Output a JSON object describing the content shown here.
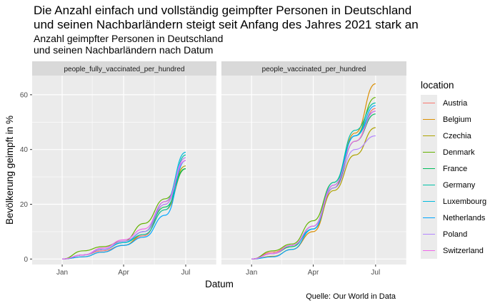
{
  "title_line1": "Die Anzahl einfach und vollständig geimpfter Personen in Deutschland",
  "title_line2": "und seinen Nachbarländern steigt seit Anfang des Jahres 2021 stark an",
  "subtitle_line1": "Anzahl geimpfter Personen in Deutschland",
  "subtitle_line2": "und seinen Nachbarländern nach Datum",
  "caption": "Quelle: Our World in Data",
  "legend_title": "location",
  "chart_data": {
    "type": "line",
    "xlabel": "Datum",
    "ylabel": "Bevölkerung geimpft in %",
    "x_ticks": [
      "Jan",
      "Apr",
      "Jul"
    ],
    "y_ticks": [
      0,
      20,
      40,
      60
    ],
    "ylim": [
      -2,
      67
    ],
    "xlim": [
      "2020-11-18",
      "2021-08-15"
    ],
    "grid": true,
    "legend_position": "right",
    "panels": [
      {
        "strip": "people_fully_vaccinated_per_hundred",
        "series": [
          {
            "name": "Austria",
            "color": "#F8766D",
            "x": [
              "2021-01-01",
              "2021-02-01",
              "2021-03-01",
              "2021-04-01",
              "2021-05-01",
              "2021-06-01",
              "2021-07-01"
            ],
            "y": [
              0,
              1.5,
              3,
              5,
              8.5,
              20,
              37
            ]
          },
          {
            "name": "Belgium",
            "color": "#DB8E00",
            "x": [
              "2021-01-01",
              "2021-02-01",
              "2021-03-01",
              "2021-04-01",
              "2021-05-01",
              "2021-06-01",
              "2021-07-01"
            ],
            "y": [
              0,
              0.8,
              2.5,
              5,
              9,
              18,
              33
            ]
          },
          {
            "name": "Czechia",
            "color": "#AEA200",
            "x": [
              "2021-01-01",
              "2021-02-01",
              "2021-03-01",
              "2021-04-01",
              "2021-05-01",
              "2021-06-01",
              "2021-07-01"
            ],
            "y": [
              0,
              1.5,
              3.5,
              6,
              10,
              21,
              34
            ]
          },
          {
            "name": "Denmark",
            "color": "#64B200",
            "x": [
              "2021-01-01",
              "2021-02-01",
              "2021-03-01",
              "2021-04-01",
              "2021-05-01",
              "2021-06-01",
              "2021-07-01"
            ],
            "y": [
              0,
              3,
              4.5,
              6.5,
              13,
              22,
              33
            ]
          },
          {
            "name": "France",
            "color": "#00BD5C",
            "x": [
              "2021-01-01",
              "2021-02-01",
              "2021-03-01",
              "2021-04-01",
              "2021-05-01",
              "2021-06-01",
              "2021-07-01"
            ],
            "y": [
              0,
              1.5,
              3.5,
              6,
              10,
              19,
              33
            ]
          },
          {
            "name": "Germany",
            "color": "#00C1A7",
            "x": [
              "2021-01-01",
              "2021-02-01",
              "2021-03-01",
              "2021-04-01",
              "2021-05-01",
              "2021-06-01",
              "2021-07-01"
            ],
            "y": [
              0,
              1.5,
              3.5,
              6,
              9,
              18,
              38
            ]
          },
          {
            "name": "Luxembourg",
            "color": "#00BADE",
            "x": [
              "2021-01-01",
              "2021-02-01",
              "2021-03-01",
              "2021-04-01",
              "2021-05-01",
              "2021-06-01",
              "2021-07-01"
            ],
            "y": [
              0,
              1.5,
              3.5,
              6,
              10,
              21,
              39
            ]
          },
          {
            "name": "Netherlands",
            "color": "#00A6FF",
            "x": [
              "2021-01-01",
              "2021-02-01",
              "2021-03-01",
              "2021-04-01",
              "2021-05-01",
              "2021-06-01",
              "2021-07-01"
            ],
            "y": [
              0,
              0.8,
              2.5,
              5,
              8,
              16,
              36
            ]
          },
          {
            "name": "Poland",
            "color": "#B385FF",
            "x": [
              "2021-01-01",
              "2021-02-01",
              "2021-03-01",
              "2021-04-01",
              "2021-05-01",
              "2021-06-01",
              "2021-07-01"
            ],
            "y": [
              0,
              1.5,
              3.5,
              6.5,
              10,
              20,
              37
            ]
          },
          {
            "name": "Switzerland",
            "color": "#EF67EB",
            "x": [
              "2021-01-01",
              "2021-02-01",
              "2021-03-01",
              "2021-04-01",
              "2021-05-01",
              "2021-06-01",
              "2021-07-01"
            ],
            "y": [
              0,
              1.5,
              4,
              7,
              11,
              21,
              36
            ]
          }
        ]
      },
      {
        "strip": "people_vaccinated_per_hundred",
        "series": [
          {
            "name": "Austria",
            "color": "#F8766D",
            "x": [
              "2021-01-01",
              "2021-02-01",
              "2021-03-01",
              "2021-04-01",
              "2021-05-01",
              "2021-06-01",
              "2021-07-01"
            ],
            "y": [
              0,
              2.5,
              5,
              12,
              27,
              43,
              55
            ]
          },
          {
            "name": "Belgium",
            "color": "#DB8E00",
            "x": [
              "2021-01-01",
              "2021-02-01",
              "2021-03-01",
              "2021-04-01",
              "2021-05-01",
              "2021-06-01",
              "2021-07-01"
            ],
            "y": [
              0,
              1,
              3.5,
              10,
              26,
              46,
              64
            ]
          },
          {
            "name": "Czechia",
            "color": "#AEA200",
            "x": [
              "2021-01-01",
              "2021-02-01",
              "2021-03-01",
              "2021-04-01",
              "2021-05-01",
              "2021-06-01",
              "2021-07-01"
            ],
            "y": [
              0,
              2,
              5,
              11,
              25,
              38,
              48
            ]
          },
          {
            "name": "Denmark",
            "color": "#64B200",
            "x": [
              "2021-01-01",
              "2021-02-01",
              "2021-03-01",
              "2021-04-01",
              "2021-05-01",
              "2021-06-01",
              "2021-07-01"
            ],
            "y": [
              0,
              3,
              5.5,
              14,
              28,
              45,
              59
            ]
          },
          {
            "name": "France",
            "color": "#00BD5C",
            "x": [
              "2021-01-01",
              "2021-02-01",
              "2021-03-01",
              "2021-04-01",
              "2021-05-01",
              "2021-06-01",
              "2021-07-01"
            ],
            "y": [
              0,
              2,
              4.5,
              12,
              26,
              43,
              53
            ]
          },
          {
            "name": "Germany",
            "color": "#00C1A7",
            "x": [
              "2021-01-01",
              "2021-02-01",
              "2021-03-01",
              "2021-04-01",
              "2021-05-01",
              "2021-06-01",
              "2021-07-01"
            ],
            "y": [
              0,
              2,
              5,
              12,
              28,
              47,
              57
            ]
          },
          {
            "name": "Luxembourg",
            "color": "#00BADE",
            "x": [
              "2021-01-01",
              "2021-02-01",
              "2021-03-01",
              "2021-04-01",
              "2021-05-01",
              "2021-06-01",
              "2021-07-01"
            ],
            "y": [
              0,
              2,
              5,
              11,
              27,
              45,
              54
            ]
          },
          {
            "name": "Netherlands",
            "color": "#00A6FF",
            "x": [
              "2021-01-01",
              "2021-02-01",
              "2021-03-01",
              "2021-04-01",
              "2021-05-01",
              "2021-06-01",
              "2021-07-01"
            ],
            "y": [
              0,
              0.8,
              3.5,
              11,
              27,
              45,
              56
            ]
          },
          {
            "name": "Poland",
            "color": "#B385FF",
            "x": [
              "2021-01-01",
              "2021-02-01",
              "2021-03-01",
              "2021-04-01",
              "2021-05-01",
              "2021-06-01",
              "2021-07-01"
            ],
            "y": [
              0,
              2,
              5,
              12,
              26,
              40,
              45
            ]
          },
          {
            "name": "Switzerland",
            "color": "#EF67EB",
            "x": [
              "2021-01-01",
              "2021-02-01",
              "2021-03-01",
              "2021-04-01",
              "2021-05-01",
              "2021-06-01",
              "2021-07-01"
            ],
            "y": [
              0,
              2,
              5,
              12,
              27,
              43,
              54
            ]
          }
        ]
      }
    ]
  }
}
